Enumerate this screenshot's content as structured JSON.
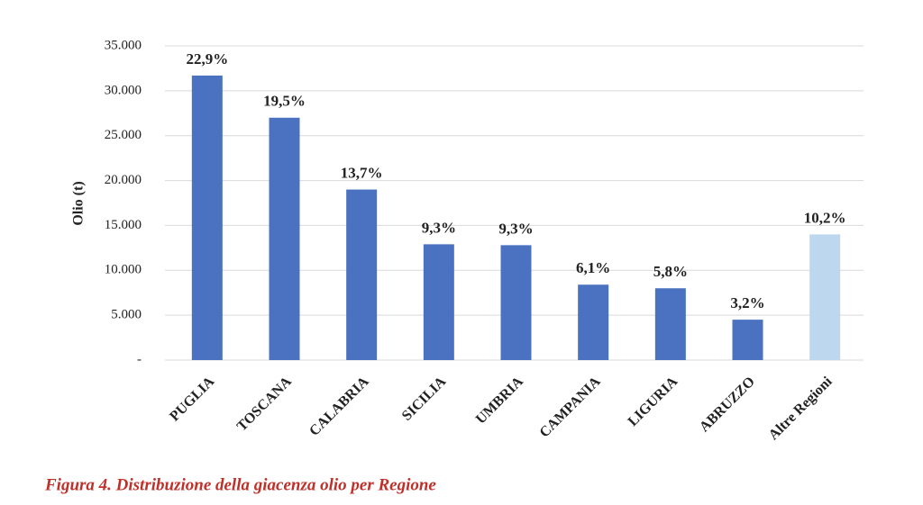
{
  "chart_data": {
    "type": "bar",
    "ylabel": "Olio (t)",
    "caption": "Figura 4. Distribuzione della giacenza olio per Regione",
    "categories": [
      "PUGLIA",
      "TOSCANA",
      "CALABRIA",
      "SICILIA",
      "UMBRIA",
      "CAMPANIA",
      "LIGURIA",
      "ABRUZZO",
      "Altre Regioni"
    ],
    "values": [
      31700,
      27000,
      19000,
      12900,
      12800,
      8400,
      8000,
      4500,
      14000
    ],
    "labels": [
      "22,9%",
      "19,5%",
      "13,7%",
      "9,3%",
      "9,3%",
      "6,1%",
      "5,8%",
      "3,2%",
      "10,2%"
    ],
    "colors": [
      "#4a72c0",
      "#4a72c0",
      "#4a72c0",
      "#4a72c0",
      "#4a72c0",
      "#4a72c0",
      "#4a72c0",
      "#4a72c0",
      "#bdd7ee"
    ],
    "ylim": [
      0,
      35000
    ],
    "yticks": [
      {
        "value": 0,
        "label": "-"
      },
      {
        "value": 5000,
        "label": "5.000"
      },
      {
        "value": 10000,
        "label": "10.000"
      },
      {
        "value": 15000,
        "label": "15.000"
      },
      {
        "value": 20000,
        "label": "20.000"
      },
      {
        "value": 25000,
        "label": "25.000"
      },
      {
        "value": 30000,
        "label": "30.000"
      },
      {
        "value": 35000,
        "label": "35.000"
      }
    ],
    "grid": true
  }
}
